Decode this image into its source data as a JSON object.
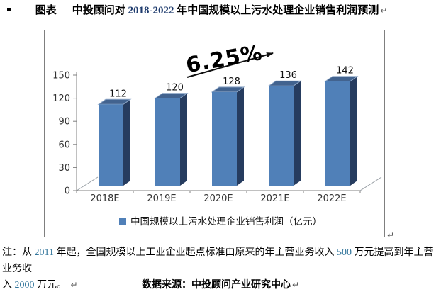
{
  "page": {
    "return_mark": "↵",
    "bullet_icon": "black-square-bullet"
  },
  "title": {
    "label": "图表",
    "part1": "中投顾问对 ",
    "years": "2018-2022",
    "part2": " 年中国规模以上污水处理企业销售利润预测"
  },
  "chart_data": {
    "type": "bar",
    "style": "3d-column",
    "categories": [
      "2018E",
      "2019E",
      "2020E",
      "2021E",
      "2022E"
    ],
    "series": [
      {
        "name": "中国规模以上污水处理企业销售利润（亿元）",
        "values": [
          112,
          120,
          128,
          136,
          142
        ]
      }
    ],
    "title": "",
    "xlabel": "",
    "ylabel": "",
    "ylim": [
      0,
      150
    ],
    "yticks": [
      0,
      30,
      60,
      90,
      120,
      150
    ],
    "grid": false,
    "legend_position": "bottom-center",
    "annotation": {
      "text": "6.25%",
      "type": "growth-arrow"
    },
    "colors": {
      "bar_front": "#5080B8",
      "bar_top": "#42638F",
      "bar_top_bevel": "#8FA8C8",
      "bar_side": "#263C5F",
      "axis": "#808080",
      "floor": "#9aa0a6",
      "label": "#1a1a1a"
    }
  },
  "notes": {
    "line1_pre": "注：从 ",
    "num1": "2011",
    "line1_mid": " 年起，全国规模以上工业企业起点标准由原来的年主营业务收入 ",
    "num2": "500",
    "line1_end": " 万元提高到年主营业务收",
    "line2_pre": "入 ",
    "num3": "2000",
    "line2_end": " 万元。",
    "source": "数据来源：中投顾问产业研究中心"
  }
}
